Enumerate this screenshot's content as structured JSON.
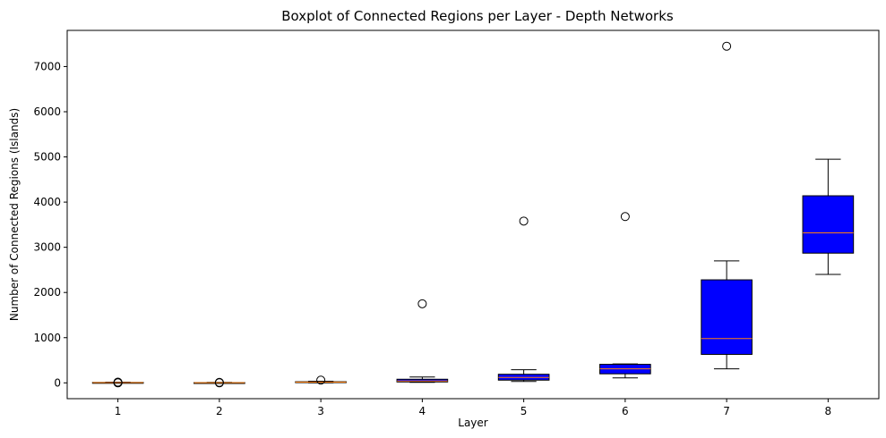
{
  "chart_data": {
    "type": "boxplot",
    "title": "Boxplot of Connected Regions per Layer - Depth Networks",
    "xlabel": "Layer",
    "ylabel": "Number of Connected Regions (Islands)",
    "ylim": [
      -350,
      7800
    ],
    "yticks": [
      0,
      1000,
      2000,
      3000,
      4000,
      5000,
      6000,
      7000
    ],
    "categories": [
      "1",
      "2",
      "3",
      "4",
      "5",
      "6",
      "7",
      "8"
    ],
    "box_color": "#0000ff",
    "median_color": "#ff7f0e",
    "grid": false,
    "boxes": [
      {
        "whisker_low": 0,
        "q1": 2,
        "median": 5,
        "q3": 10,
        "whisker_high": 15,
        "outliers": [
          0,
          5,
          15
        ]
      },
      {
        "whisker_low": 0,
        "q1": 1,
        "median": 3,
        "q3": 6,
        "whisker_high": 10,
        "outliers": [
          0,
          10
        ]
      },
      {
        "whisker_low": 0,
        "q1": 8,
        "median": 15,
        "q3": 25,
        "whisker_high": 35,
        "outliers": [
          60
        ]
      },
      {
        "whisker_low": 10,
        "q1": 20,
        "median": 40,
        "q3": 80,
        "whisker_high": 130,
        "outliers": [
          1750
        ]
      },
      {
        "whisker_low": 30,
        "q1": 60,
        "median": 120,
        "q3": 190,
        "whisker_high": 290,
        "outliers": [
          3580
        ]
      },
      {
        "whisker_low": 110,
        "q1": 200,
        "median": 310,
        "q3": 410,
        "whisker_high": 420,
        "outliers": [
          3680
        ]
      },
      {
        "whisker_low": 310,
        "q1": 630,
        "median": 980,
        "q3": 2280,
        "whisker_high": 2700,
        "outliers": [
          7450
        ]
      },
      {
        "whisker_low": 2400,
        "q1": 2870,
        "median": 3320,
        "q3": 4140,
        "whisker_high": 4950,
        "outliers": []
      }
    ]
  }
}
